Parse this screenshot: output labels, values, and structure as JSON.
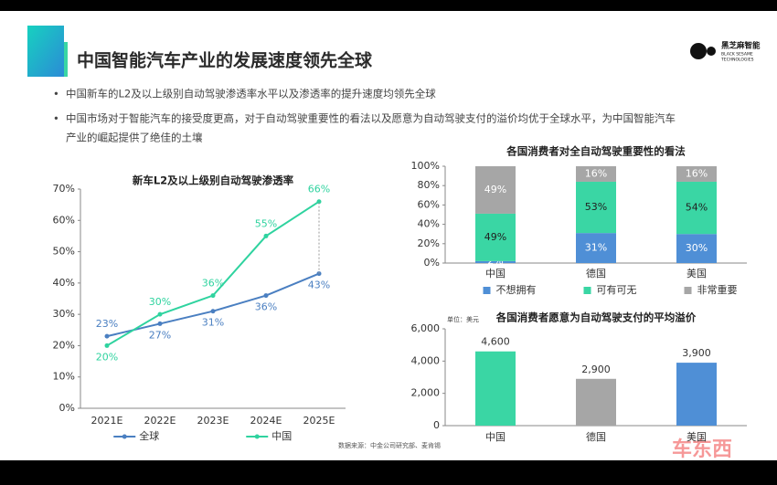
{
  "header": {
    "title": "中国智能汽车产业的发展速度领先全球",
    "logo_name": "黑芝麻智能",
    "logo_sub": [
      "BLACK SESAME",
      "TECHNOLOGIES"
    ]
  },
  "bullets": [
    "中国新车的L2及以上级别自动驾驶渗透率水平以及渗透率的提升速度均领先全球",
    "中国市场对于智能汽车的接受度更高，对于自动驾驶重要性的看法以及愿意为自动驾驶支付的溢价均优于全球水平，为中国智能汽车",
    "产业的崛起提供了绝佳的土壤"
  ],
  "chart_data": [
    {
      "type": "line",
      "title": "新车L2及以上级别自动驾驶渗透率",
      "categories": [
        "2021E",
        "2022E",
        "2023E",
        "2024E",
        "2025E"
      ],
      "series": [
        {
          "name": "全球",
          "color": "#4a7fc1",
          "values": [
            23,
            27,
            31,
            36,
            43
          ],
          "value_labels": [
            "23%",
            "27%",
            "31%",
            "36%",
            "43%"
          ]
        },
        {
          "name": "中国",
          "color": "#2fd39f",
          "values": [
            20,
            30,
            36,
            55,
            66
          ],
          "value_labels": [
            "20%",
            "30%",
            "36%",
            "55%",
            "66%"
          ]
        }
      ],
      "ylim": [
        0,
        70
      ],
      "yticks": [
        {
          "value": 0,
          "label": "0%"
        },
        {
          "value": 10,
          "label": "10%"
        },
        {
          "value": 20,
          "label": "20%"
        },
        {
          "value": 30,
          "label": "30%"
        },
        {
          "value": 40,
          "label": "40%"
        },
        {
          "value": 50,
          "label": "50%"
        },
        {
          "value": 60,
          "label": "60%"
        },
        {
          "value": 70,
          "label": "70%"
        }
      ],
      "legend": "bottom"
    },
    {
      "type": "bar",
      "stacked": true,
      "title": "各国消费者对全自动驾驶重要性的看法",
      "categories": [
        "中国",
        "德国",
        "美国"
      ],
      "series": [
        {
          "name": "不想拥有",
          "color": "#4f8fd6",
          "values": [
            2,
            31,
            30
          ],
          "value_labels": [
            "2%",
            "31%",
            "30%"
          ]
        },
        {
          "name": "可有可无",
          "color": "#3ad6a4",
          "values": [
            49,
            53,
            54
          ],
          "value_labels": [
            "49%",
            "53%",
            "54%"
          ]
        },
        {
          "name": "非常重要",
          "color": "#a6a6a6",
          "values": [
            49,
            16,
            16
          ],
          "value_labels": [
            "49%",
            "16%",
            "16%"
          ]
        }
      ],
      "ylim": [
        0,
        100
      ],
      "yticks": [
        {
          "value": 0,
          "label": "0%"
        },
        {
          "value": 20,
          "label": "20%"
        },
        {
          "value": 40,
          "label": "40%"
        },
        {
          "value": 60,
          "label": "60%"
        },
        {
          "value": 80,
          "label": "80%"
        },
        {
          "value": 100,
          "label": "100%"
        }
      ],
      "legend": "bottom"
    },
    {
      "type": "bar",
      "title": "各国消费者愿意为自动驾驶支付的平均溢价",
      "unit": "单位：美元",
      "categories": [
        "中国",
        "德国",
        "美国"
      ],
      "values": [
        4600,
        2900,
        3900
      ],
      "value_labels": [
        "4,600",
        "2,900",
        "3,900"
      ],
      "colors": [
        "#3ad6a4",
        "#a6a6a6",
        "#4f8fd6"
      ],
      "ylim": [
        0,
        6000
      ],
      "yticks": [
        0,
        {
          "value": 2000,
          "label": "2,000"
        },
        {
          "value": 4000,
          "label": "4,000"
        },
        {
          "value": 6000,
          "label": "6,000"
        }
      ]
    }
  ],
  "source": "数据来源：中金公司研究部、麦肯锡",
  "watermark": "车东西"
}
